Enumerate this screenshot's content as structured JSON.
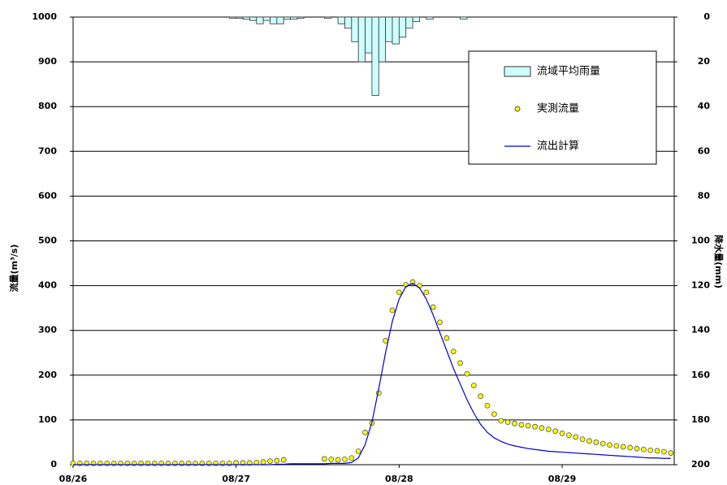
{
  "chart_data": {
    "type": "combo",
    "y_label": "流量(m³/s)",
    "y2_label": "降水量(mm)",
    "x": [
      0,
      1,
      2,
      3,
      4,
      5,
      6,
      7,
      8,
      9,
      10,
      11,
      12,
      13,
      14,
      15,
      16,
      17,
      18,
      19,
      20,
      21,
      22,
      23,
      24,
      25,
      26,
      27,
      28,
      29,
      30,
      31,
      32,
      33,
      34,
      35,
      36,
      37,
      38,
      39,
      40,
      41,
      42,
      43,
      44,
      45,
      46,
      47,
      48,
      49,
      50,
      51,
      52,
      53,
      54,
      55,
      56,
      57,
      58,
      59,
      60,
      61,
      62,
      63,
      64,
      65,
      66,
      67,
      68,
      69,
      70,
      71,
      72,
      73,
      74,
      75,
      76,
      77,
      78,
      79,
      80,
      81,
      82,
      83,
      84,
      85,
      86,
      87,
      88
    ],
    "xlim": [
      0,
      88.5
    ],
    "xticks": [
      {
        "value": 0,
        "label": "08/26"
      },
      {
        "value": 24,
        "label": "08/27"
      },
      {
        "value": 48,
        "label": "08/28"
      },
      {
        "value": 72,
        "label": "08/29"
      }
    ],
    "ylim": [
      0,
      1000
    ],
    "yticks": [
      0,
      100,
      200,
      300,
      400,
      500,
      600,
      700,
      800,
      900,
      1000
    ],
    "y2lim": [
      200,
      0
    ],
    "y2ticks": [
      0,
      20,
      40,
      60,
      80,
      100,
      120,
      140,
      160,
      180,
      200
    ],
    "grid": true,
    "legend": "upper right",
    "series": [
      {
        "name": "流域平均雨量",
        "type": "bar",
        "axis": "y2",
        "color": "#ccffff",
        "x": [
          23,
          24,
          25,
          26,
          27,
          28,
          29,
          30,
          31,
          32,
          33,
          37,
          39,
          40,
          41,
          42,
          43,
          44,
          45,
          46,
          47,
          48,
          49,
          50,
          52,
          57
        ],
        "values": [
          0.5,
          0.5,
          1,
          1.5,
          3,
          1.5,
          3,
          3,
          1,
          1,
          0.5,
          0.5,
          3,
          5,
          11,
          20,
          16,
          35,
          20,
          11,
          12,
          9,
          5,
          2,
          1,
          1
        ]
      },
      {
        "name": "実測流量",
        "type": "scatter",
        "color": "#ffff00",
        "values": [
          3,
          3,
          3,
          3,
          3,
          3,
          3,
          3,
          3,
          3,
          3,
          3,
          3,
          3,
          3,
          3,
          3,
          3,
          3,
          3,
          3,
          3,
          3,
          3,
          4,
          4,
          4,
          5,
          6,
          8,
          9,
          11,
          null,
          null,
          null,
          null,
          null,
          13,
          12,
          11,
          12,
          15,
          30,
          72,
          93,
          160,
          277,
          345,
          385,
          402,
          408,
          400,
          385,
          352,
          318,
          283,
          253,
          227,
          203,
          177,
          153,
          132,
          113,
          98,
          95,
          92,
          89,
          87,
          85,
          82,
          79,
          75,
          70,
          66,
          62,
          57,
          53,
          50,
          47,
          44,
          42,
          40,
          38,
          36,
          34,
          32,
          31,
          29,
          26
        ]
      },
      {
        "name": "流出計算",
        "type": "line",
        "color": "#0000cc",
        "values": [
          0,
          0,
          0,
          0,
          0,
          0,
          0,
          0,
          0,
          0,
          0,
          0,
          0,
          0,
          0,
          0,
          0,
          0,
          0,
          0,
          0,
          0,
          0,
          0,
          0,
          0,
          0,
          0,
          0,
          0,
          1,
          1,
          2,
          2,
          2,
          2,
          2,
          2,
          3,
          3,
          3,
          5,
          15,
          45,
          95,
          170,
          250,
          320,
          370,
          398,
          405,
          395,
          370,
          335,
          295,
          255,
          215,
          180,
          145,
          115,
          90,
          72,
          60,
          52,
          46,
          42,
          39,
          36,
          34,
          32,
          30,
          29,
          28,
          27,
          26,
          25,
          24,
          23,
          22,
          21,
          20,
          19,
          18,
          17,
          16,
          15,
          15,
          14,
          14
        ]
      }
    ]
  }
}
